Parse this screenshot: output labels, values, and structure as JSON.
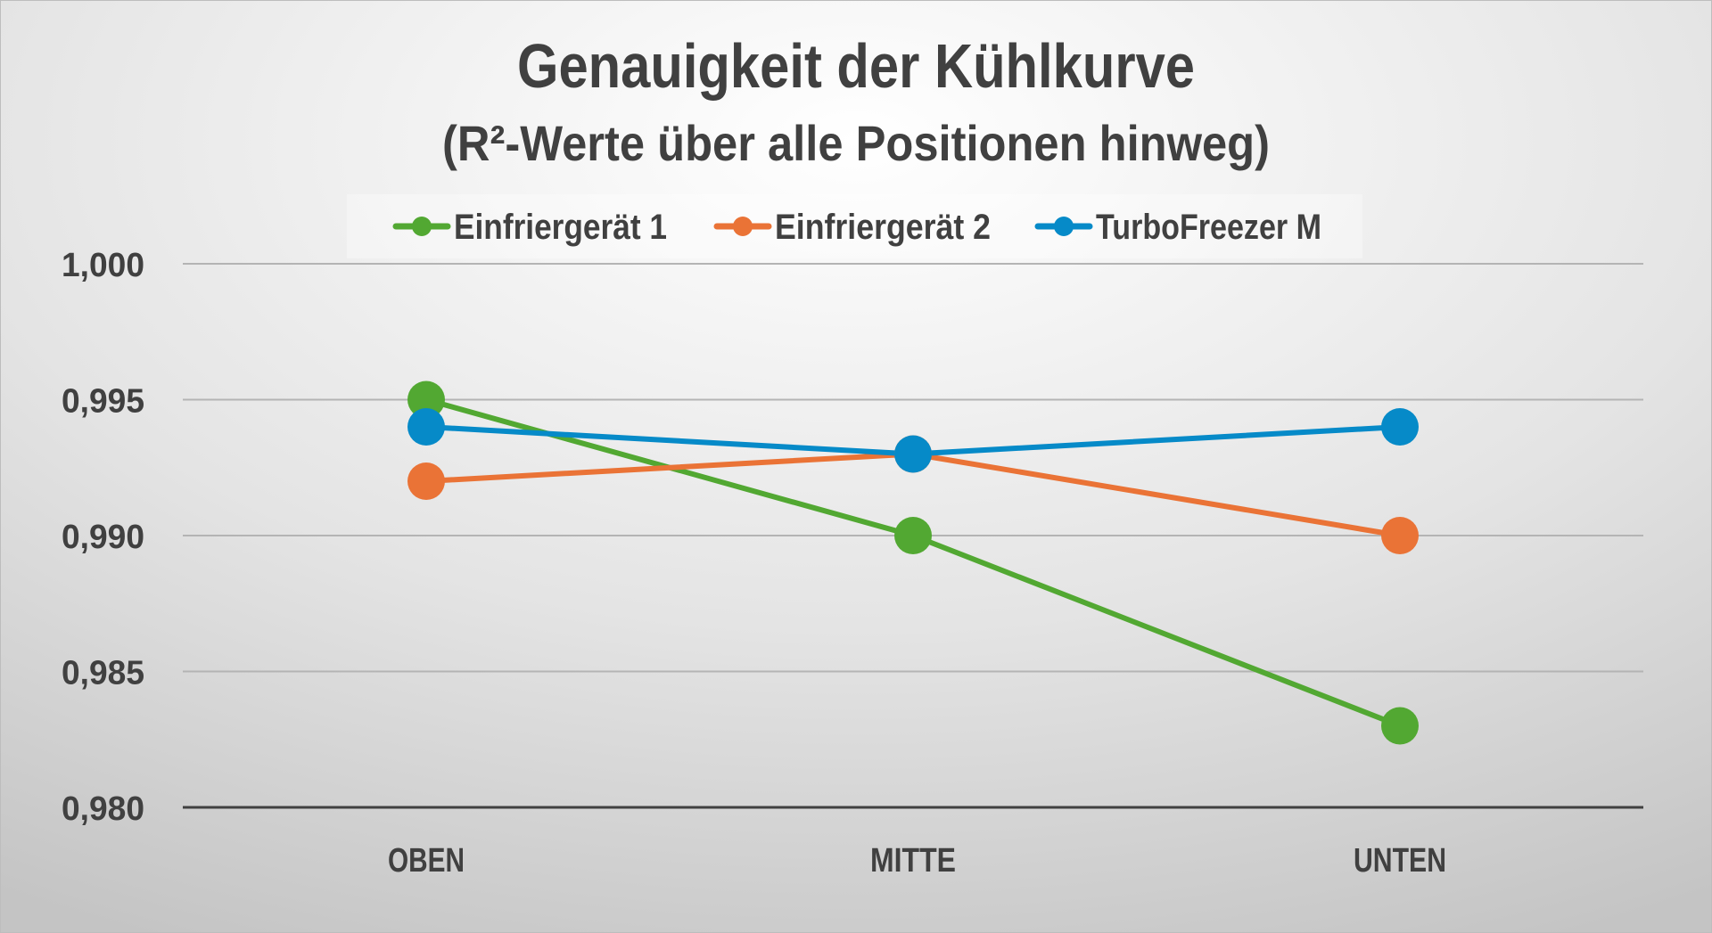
{
  "chart_data": {
    "type": "line",
    "title": "Genauigkeit der Kühlkurve",
    "subtitle": "(R²-Werte über alle Positionen hinweg)",
    "categories": [
      "OBEN",
      "MITTE",
      "UNTEN"
    ],
    "series": [
      {
        "name": "Einfriergerät 1",
        "color": "#52a832",
        "values": [
          0.995,
          0.99,
          0.983
        ]
      },
      {
        "name": "Einfriergerät 2",
        "color": "#ea7336",
        "values": [
          0.992,
          0.993,
          0.99
        ]
      },
      {
        "name": "TurboFreezer M",
        "color": "#068ac8",
        "values": [
          0.994,
          0.993,
          0.994
        ]
      }
    ],
    "ylim": [
      0.98,
      1.0
    ],
    "yticks": [
      0.98,
      0.985,
      0.99,
      0.995,
      1.0
    ],
    "ytick_labels": [
      "0,980",
      "0,985",
      "0,990",
      "0,995",
      "1,000"
    ],
    "xlabel": "",
    "ylabel": "",
    "grid": true,
    "legend_position": "top"
  }
}
